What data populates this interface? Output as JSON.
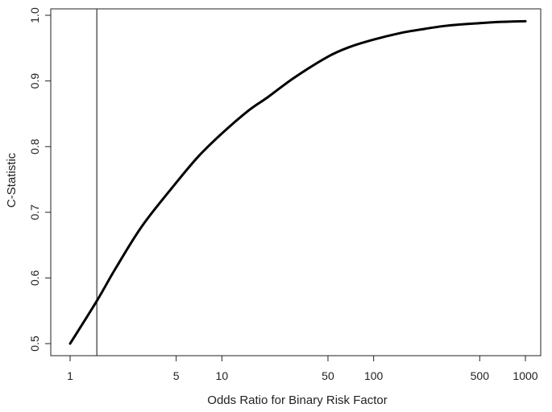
{
  "chart_data": {
    "type": "line",
    "title": "",
    "xlabel": "Odds Ratio for Binary Risk Factor",
    "ylabel": "C-Statistic",
    "x_scale": "log",
    "xlim": [
      1,
      1000
    ],
    "ylim": [
      0.5,
      1.0
    ],
    "x_ticks": [
      1,
      5,
      10,
      50,
      100,
      500,
      1000
    ],
    "x_tick_labels": [
      "1",
      "5",
      "10",
      "50",
      "100",
      "500",
      "1000"
    ],
    "y_ticks": [
      0.5,
      0.6,
      0.7,
      0.8,
      0.9,
      1.0
    ],
    "y_tick_labels": [
      "0.5",
      "0.6",
      "0.7",
      "0.8",
      "0.9",
      "1.0"
    ],
    "grid": false,
    "legend": "none",
    "reference_line": {
      "orientation": "vertical",
      "x": 1.5
    },
    "series": [
      {
        "x": [
          1,
          1.5,
          2,
          3,
          5,
          7,
          10,
          15,
          20,
          30,
          50,
          70,
          100,
          150,
          200,
          300,
          500,
          700,
          1000
        ],
        "values": [
          0.5,
          0.565,
          0.615,
          0.68,
          0.745,
          0.785,
          0.82,
          0.855,
          0.875,
          0.905,
          0.937,
          0.952,
          0.963,
          0.973,
          0.978,
          0.984,
          0.988,
          0.99,
          0.991
        ]
      }
    ],
    "colors": {
      "line": "#000000",
      "reference_line": "#333333",
      "axes": "#222222"
    }
  }
}
